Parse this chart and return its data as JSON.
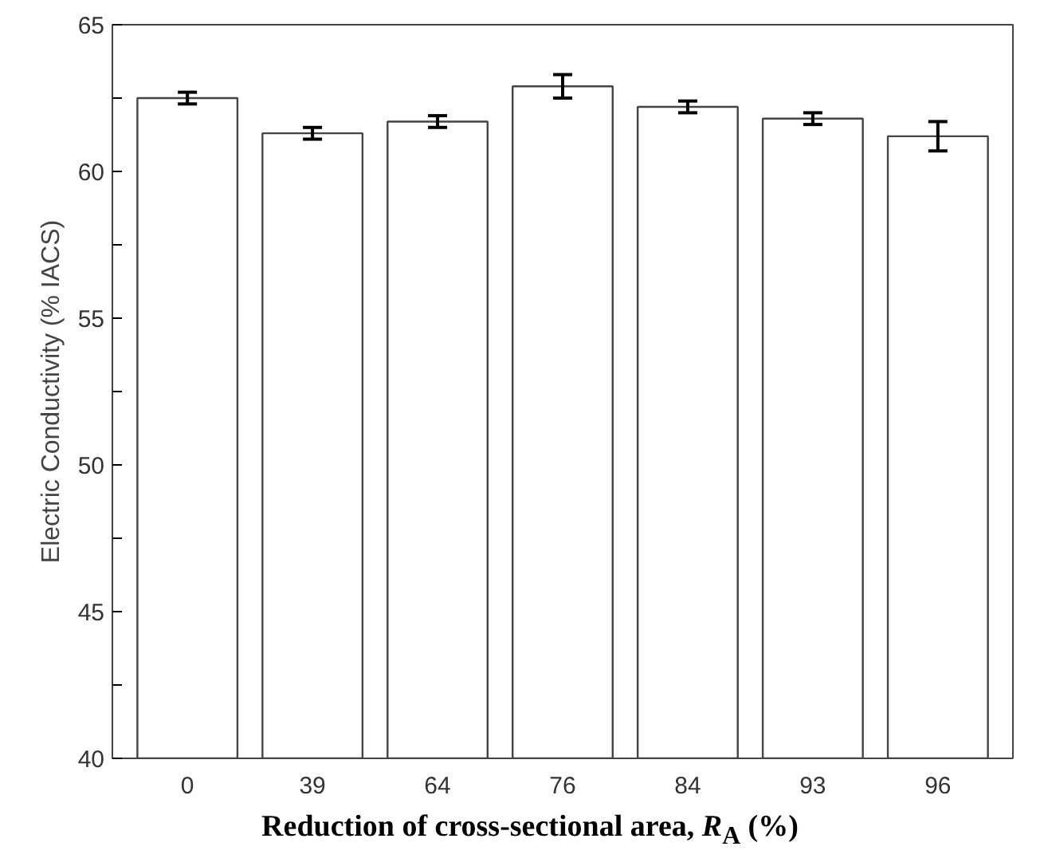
{
  "chart_data": {
    "type": "bar",
    "xlabel": "Reduction of cross-sectional area, R$_{A}$ (%)",
    "ylabel": "Electric Conductivity (% IACS)",
    "categories": [
      "0",
      "39",
      "64",
      "76",
      "84",
      "93",
      "96"
    ],
    "values": [
      62.5,
      61.3,
      61.7,
      62.9,
      62.2,
      61.8,
      61.2
    ],
    "errors": [
      0.2,
      0.2,
      0.2,
      0.4,
      0.2,
      0.2,
      0.5
    ],
    "color": "#ffffff",
    "ylim": [
      40,
      65
    ],
    "yticks": [
      40,
      {
        "value": 42.5,
        "label": null
      },
      45,
      {
        "value": 47.5,
        "label": null
      },
      50,
      {
        "value": 52.5,
        "label": null
      },
      55,
      {
        "value": 57.5,
        "label": null
      },
      60,
      {
        "value": 62.5,
        "label": null
      },
      65
    ],
    "grid": false
  }
}
